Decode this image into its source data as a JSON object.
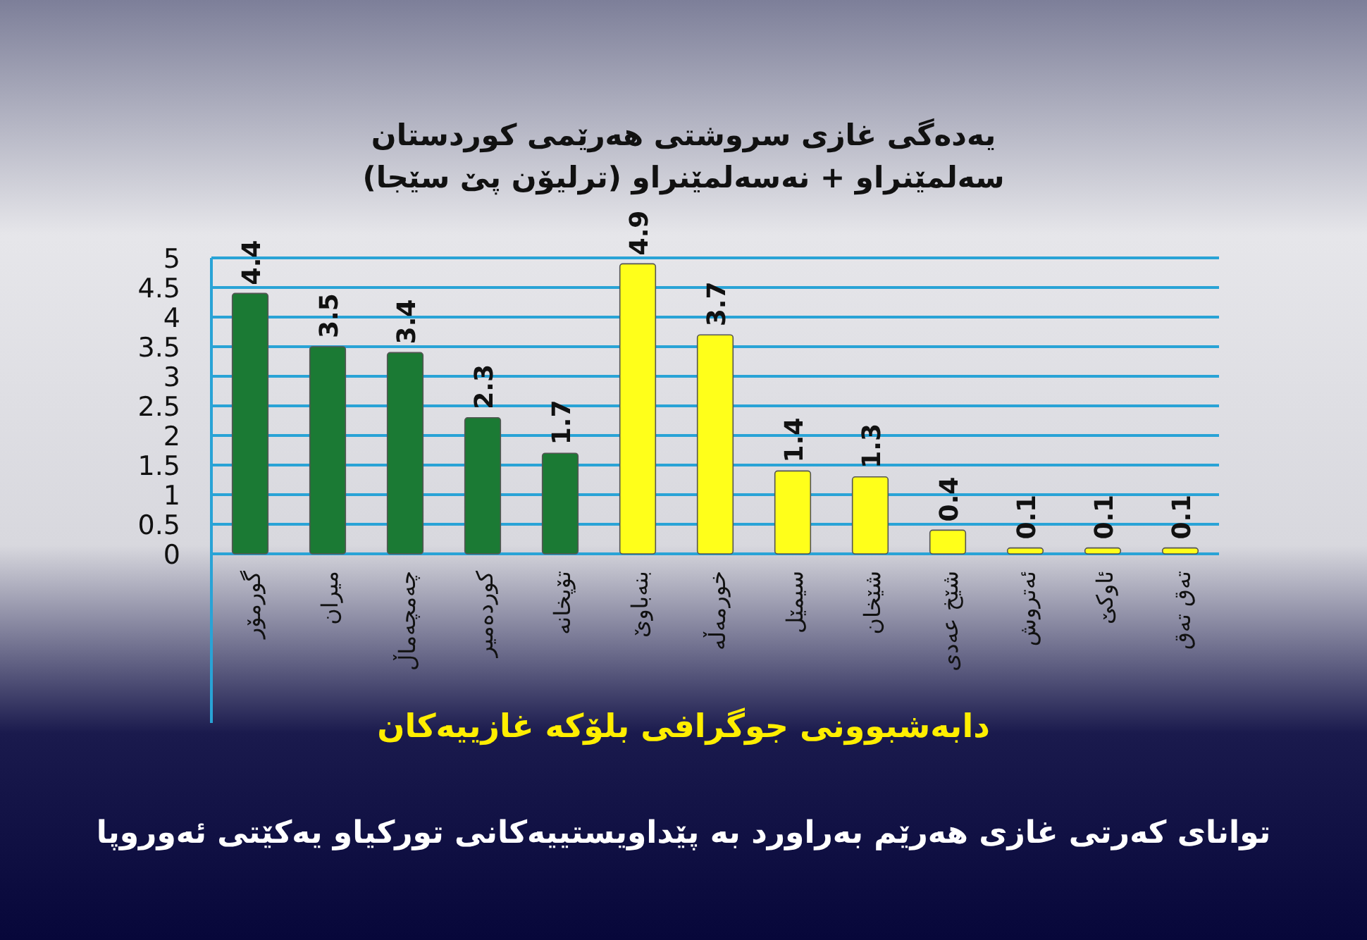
{
  "chart_data": {
    "type": "bar",
    "title": "یەدەگی غازی سروشتی هەرێمی کوردستان",
    "subtitle": "سەلمێنراو + نەسەلمێنراو (ترلیۆن پێ سێجا)",
    "categories": [
      "گورمۆر",
      "میران",
      "چەمچەماڵ",
      "کوردەمیر",
      "تۆپخانە",
      "بنەباوێ",
      "خورمەڵە",
      "سیمێل",
      "شێخان",
      "شێخ عەدی",
      "ئەتروش",
      "ئاوکێ",
      "تەق تەق"
    ],
    "values": [
      4.4,
      3.5,
      3.4,
      2.3,
      1.7,
      4.9,
      3.7,
      1.4,
      1.3,
      0.4,
      0.1,
      0.1,
      0.1
    ],
    "colors": [
      "#1b7a34",
      "#1b7a34",
      "#1b7a34",
      "#1b7a34",
      "#1b7a34",
      "#ffff1a",
      "#ffff1a",
      "#ffff1a",
      "#ffff1a",
      "#ffff1a",
      "#ffff1a",
      "#ffff1a",
      "#ffff1a"
    ],
    "ylim": [
      0,
      5
    ],
    "yticks": [
      0,
      0.5,
      1,
      1.5,
      2,
      2.5,
      3,
      3.5,
      4,
      4.5,
      5
    ],
    "grid": "y",
    "data_labels": true,
    "annotations": [
      "دابەشبوونی جوگرافی بلۆکە غازییەکان",
      "توانای کەرتی غازی هەرێم بەراورد بە پێداویستییەکانی تورکیاو یەکێتی ئەوروپا"
    ]
  }
}
